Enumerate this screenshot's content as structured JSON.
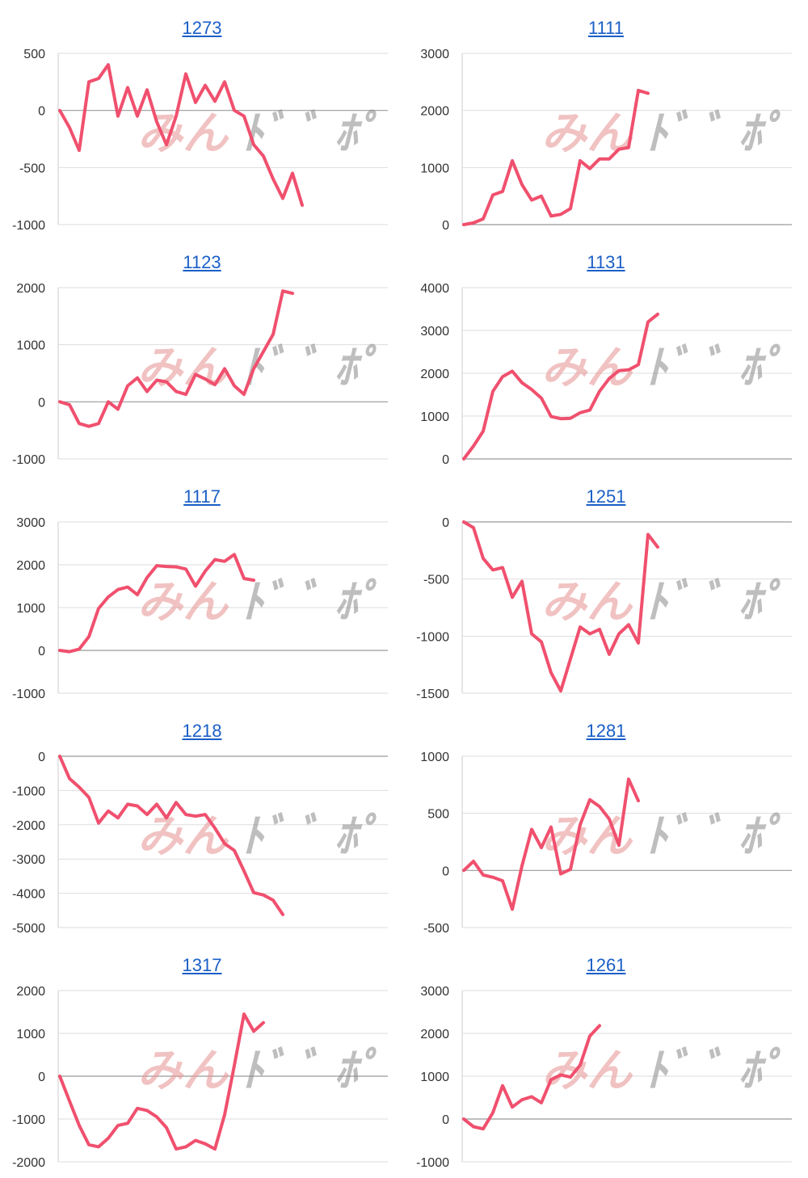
{
  "style": {
    "line_color": "#f0506e",
    "title_color": "#1a5fc7"
  },
  "chart_data": [
    {
      "type": "line",
      "title": "1273",
      "ylim": [
        -1000,
        500
      ],
      "yticks": [
        500,
        0,
        -500,
        -1000
      ],
      "grid": true,
      "values": [
        0,
        -150,
        -350,
        250,
        280,
        400,
        -50,
        200,
        -50,
        180,
        -100,
        -300,
        -50,
        320,
        70,
        220,
        80,
        250,
        0,
        -50,
        -300,
        -400,
        -600,
        -770,
        -550,
        -830
      ]
    },
    {
      "type": "line",
      "title": "1111",
      "ylim": [
        0,
        3000
      ],
      "yticks": [
        3000,
        2000,
        1000,
        0
      ],
      "grid": true,
      "values": [
        0,
        30,
        100,
        520,
        580,
        1120,
        700,
        430,
        500,
        150,
        180,
        280,
        1120,
        980,
        1150,
        1150,
        1320,
        1350,
        2350,
        2300
      ]
    },
    {
      "type": "line",
      "title": "1123",
      "ylim": [
        -1000,
        2000
      ],
      "yticks": [
        2000,
        1000,
        0,
        -1000
      ],
      "grid": true,
      "values": [
        0,
        -50,
        -380,
        -430,
        -380,
        0,
        -130,
        280,
        420,
        180,
        380,
        350,
        180,
        130,
        480,
        400,
        300,
        580,
        280,
        130,
        580,
        880,
        1180,
        1940,
        1900
      ]
    },
    {
      "type": "line",
      "title": "1131",
      "ylim": [
        0,
        4000
      ],
      "yticks": [
        4000,
        3000,
        2000,
        1000,
        0
      ],
      "grid": true,
      "values": [
        0,
        300,
        650,
        1580,
        1920,
        2050,
        1780,
        1620,
        1420,
        990,
        940,
        950,
        1080,
        1140,
        1580,
        1880,
        2060,
        2080,
        2200,
        3200,
        3380
      ]
    },
    {
      "type": "line",
      "title": "1117",
      "ylim": [
        -1000,
        3000
      ],
      "yticks": [
        3000,
        2000,
        1000,
        0,
        -1000
      ],
      "grid": true,
      "values": [
        0,
        -30,
        30,
        320,
        980,
        1250,
        1420,
        1480,
        1300,
        1700,
        1980,
        1960,
        1950,
        1900,
        1500,
        1850,
        2120,
        2080,
        2240,
        1680,
        1640
      ]
    },
    {
      "type": "line",
      "title": "1251",
      "ylim": [
        -1500,
        0
      ],
      "yticks": [
        0,
        -500,
        -1000,
        -1500
      ],
      "grid": true,
      "values": [
        0,
        -50,
        -320,
        -420,
        -400,
        -660,
        -520,
        -980,
        -1050,
        -1320,
        -1480,
        -1200,
        -920,
        -980,
        -940,
        -1160,
        -980,
        -900,
        -1060,
        -110,
        -220
      ]
    },
    {
      "type": "line",
      "title": "1218",
      "ylim": [
        -5000,
        0
      ],
      "yticks": [
        0,
        -1000,
        -2000,
        -3000,
        -4000,
        -5000
      ],
      "grid": true,
      "values": [
        0,
        -650,
        -900,
        -1200,
        -1950,
        -1600,
        -1800,
        -1400,
        -1450,
        -1700,
        -1400,
        -1800,
        -1350,
        -1700,
        -1750,
        -1700,
        -2100,
        -2550,
        -2750,
        -3350,
        -3980,
        -4050,
        -4200,
        -4620
      ]
    },
    {
      "type": "line",
      "title": "1281",
      "ylim": [
        -500,
        1000
      ],
      "yticks": [
        1000,
        500,
        0,
        -500
      ],
      "grid": true,
      "values": [
        0,
        80,
        -40,
        -60,
        -90,
        -340,
        40,
        360,
        200,
        380,
        -30,
        10,
        400,
        620,
        560,
        450,
        220,
        800,
        610
      ]
    },
    {
      "type": "line",
      "title": "1317",
      "ylim": [
        -2000,
        2000
      ],
      "yticks": [
        2000,
        1000,
        0,
        -1000,
        -2000
      ],
      "grid": true,
      "values": [
        0,
        -580,
        -1150,
        -1600,
        -1650,
        -1450,
        -1150,
        -1100,
        -750,
        -800,
        -950,
        -1200,
        -1700,
        -1650,
        -1500,
        -1580,
        -1700,
        -900,
        250,
        1450,
        1050,
        1250
      ]
    },
    {
      "type": "line",
      "title": "1261",
      "ylim": [
        -1000,
        3000
      ],
      "yticks": [
        3000,
        2000,
        1000,
        0,
        -1000
      ],
      "grid": true,
      "values": [
        0,
        -180,
        -230,
        150,
        780,
        280,
        450,
        520,
        380,
        920,
        1030,
        980,
        1260,
        1940,
        2180
      ]
    }
  ]
}
